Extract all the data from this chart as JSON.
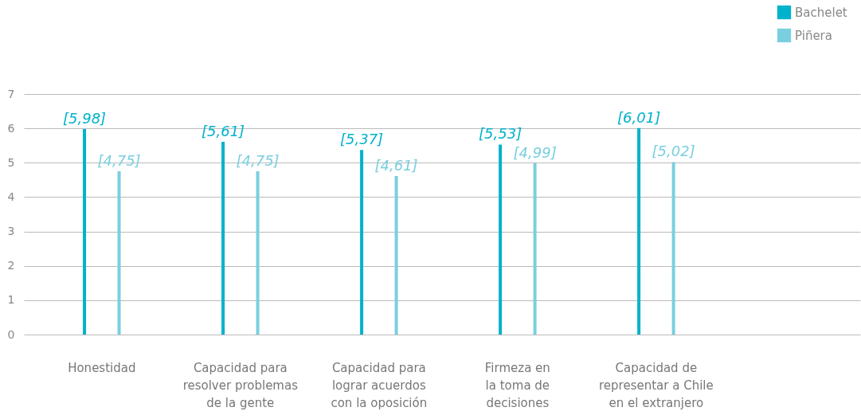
{
  "chart_data": {
    "type": "bar",
    "categories": [
      "Honestidad",
      "Capacidad para\nresolver problemas\nde la gente",
      "Capacidad para\nlograr acuerdos\ncon la oposición",
      "Firmeza en\nla toma de\ndecisiones",
      "Capacidad de\nrepresentar a Chile\nen el extranjero"
    ],
    "series": [
      {
        "name": "Bachelet",
        "color": "#00b2cb",
        "values": [
          5.98,
          5.61,
          5.37,
          5.53,
          6.01
        ],
        "value_labels": [
          "[5,98]",
          "[5,61]",
          "[5,37]",
          "[5,53]",
          "[6,01]"
        ]
      },
      {
        "name": "Piñera",
        "color": "#7acfdf",
        "values": [
          4.75,
          4.75,
          4.61,
          4.99,
          5.02
        ],
        "value_labels": [
          "[4,75]",
          "[4,75]",
          "[4,61]",
          "[4,99]",
          "[5,02]"
        ]
      }
    ],
    "ylim": [
      0,
      7
    ],
    "yticks": [
      0,
      1,
      2,
      3,
      4,
      5,
      6,
      7
    ],
    "grid": "y",
    "legend": "top right"
  }
}
